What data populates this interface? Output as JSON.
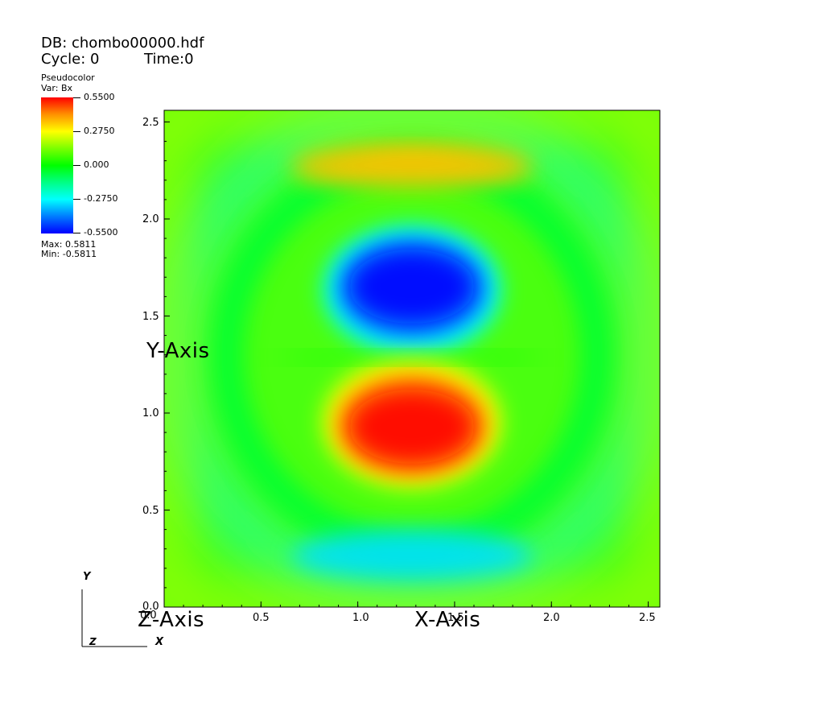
{
  "header": {
    "db_label": "DB: chombo00000.hdf",
    "cycle_label": "Cycle: 0",
    "time_label": "Time:0"
  },
  "legend": {
    "plot_type": "Pseudocolor",
    "var_label": "Var: Bx",
    "ticks": [
      "0.5500",
      "0.2750",
      "0.000",
      "-0.2750",
      "-0.5500"
    ],
    "max_label": "Max:  0.5811",
    "min_label": "Min: -0.5811",
    "colormap": [
      "#ff0000",
      "#ffff00",
      "#00ff00",
      "#00ffff",
      "#0000ff"
    ]
  },
  "axes": {
    "x_title": "X-Axis",
    "y_title": "Y-Axis",
    "z_title": "Z-Axis",
    "x_ticks": [
      "0.0",
      "0.5",
      "1.0",
      "1.5",
      "2.0",
      "2.5"
    ],
    "y_ticks": [
      "2.5",
      "2.0",
      "1.5",
      "1.0",
      "0.5",
      "0.0"
    ]
  },
  "triad": {
    "x_label": "X",
    "y_label": "Y",
    "z_label": "Z"
  },
  "chart_data": {
    "type": "heatmap",
    "title": "",
    "variable": "Bx",
    "xlabel": "X-Axis",
    "ylabel": "Y-Axis",
    "xlim": [
      0,
      2.56
    ],
    "ylim": [
      0,
      2.56
    ],
    "x_ticks": [
      0.0,
      0.5,
      1.0,
      1.5,
      2.0,
      2.5
    ],
    "y_ticks": [
      0.0,
      0.5,
      1.0,
      1.5,
      2.0,
      2.5
    ],
    "value_range": [
      -0.55,
      0.55
    ],
    "data_max": 0.5811,
    "data_min": -0.5811,
    "features": [
      {
        "kind": "peak",
        "x": 1.28,
        "y": 0.93,
        "value": 0.58
      },
      {
        "kind": "trough",
        "x": 1.28,
        "y": 1.65,
        "value": -0.58
      },
      {
        "kind": "band",
        "x": 1.28,
        "y": 2.28,
        "value": 0.32
      },
      {
        "kind": "band",
        "x": 1.28,
        "y": 0.35,
        "value": -0.3
      }
    ]
  }
}
